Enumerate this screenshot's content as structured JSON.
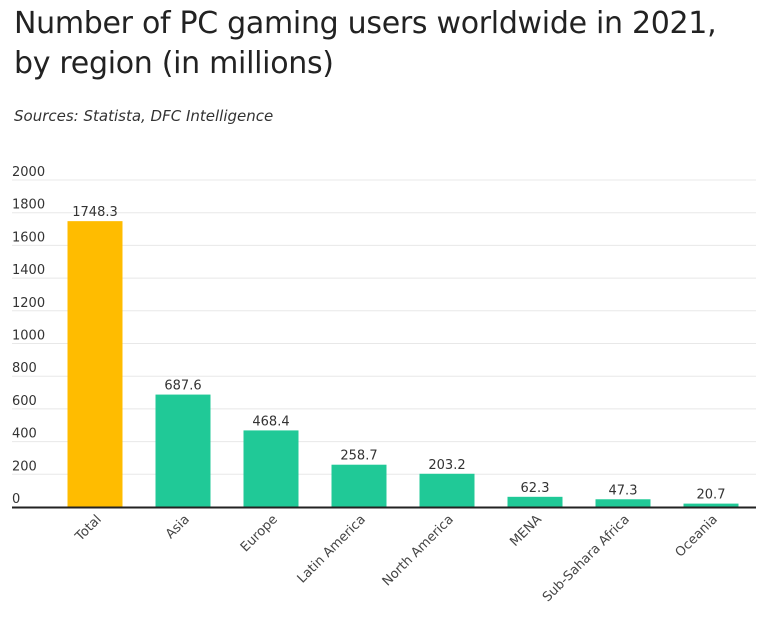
{
  "title": "Number of PC gaming users worldwide in 2021, by region (in millions)",
  "source": "Sources: Statista, DFC Intelligence",
  "colors": {
    "highlight": "#FFBC00",
    "bar": "#20C997",
    "grid": "#e8e8e8",
    "axis": "#222222"
  },
  "chart_data": {
    "type": "bar",
    "categories": [
      "Total",
      "Asia",
      "Europe",
      "Latin America",
      "North America",
      "MENA",
      "Sub-Sahara Africa",
      "Oceania"
    ],
    "values": [
      1748.3,
      687.6,
      468.4,
      258.7,
      203.2,
      62.3,
      47.3,
      20.7
    ],
    "value_labels": [
      "1748.3",
      "687.6",
      "468.4",
      "258.7",
      "203.2",
      "62.3",
      "47.3",
      "20.7"
    ],
    "highlight": [
      "Total"
    ],
    "ylim": [
      0,
      2000
    ],
    "yticks": [
      0,
      200,
      400,
      600,
      800,
      1000,
      1200,
      1400,
      1600,
      1800,
      2000
    ],
    "grid": true,
    "xlabel": "",
    "ylabel": ""
  }
}
